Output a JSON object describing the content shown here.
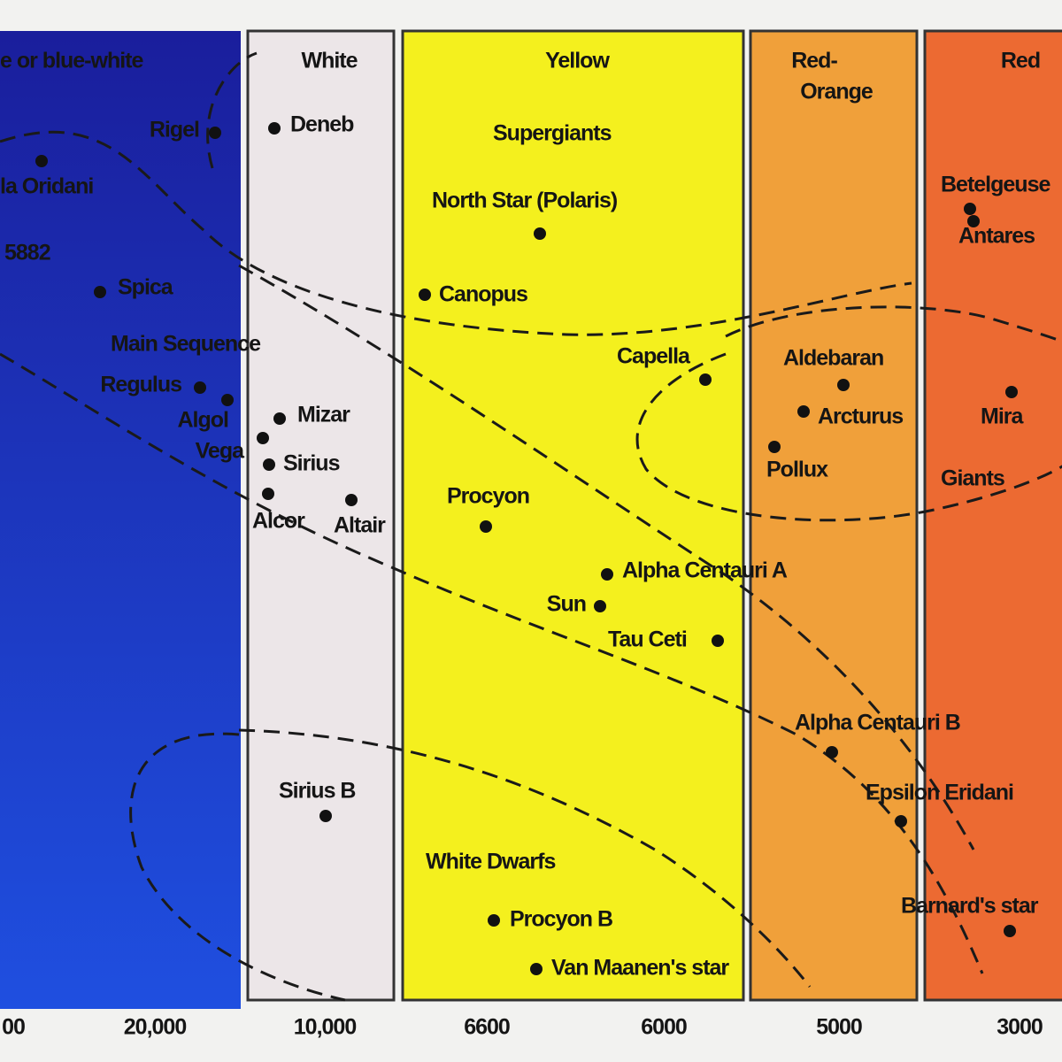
{
  "bands": [
    {
      "lines": [
        "e or blue-white"
      ]
    },
    {
      "lines": [
        "White"
      ]
    },
    {
      "lines": [
        "Yellow"
      ]
    },
    {
      "lines": [
        "Red-",
        "Orange"
      ]
    },
    {
      "lines": [
        "Red"
      ]
    }
  ],
  "regions": [
    "Supergiants",
    "Main Sequence",
    "Giants",
    "White Dwarfs"
  ],
  "stars": [
    {
      "name": "Rigel"
    },
    {
      "name": "Deneb"
    },
    {
      "name": "la Oridani"
    },
    {
      "name": "5882"
    },
    {
      "name": "Spica"
    },
    {
      "name": "Regulus"
    },
    {
      "name": "Algol"
    },
    {
      "name": "Vega"
    },
    {
      "name": "Alcor"
    },
    {
      "name": "Mizar"
    },
    {
      "name": "Sirius"
    },
    {
      "name": "Altair"
    },
    {
      "name": "North Star (Polaris)"
    },
    {
      "name": "Canopus"
    },
    {
      "name": "Capella"
    },
    {
      "name": "Aldebaran"
    },
    {
      "name": "Arcturus"
    },
    {
      "name": "Pollux"
    },
    {
      "name": "Betelgeuse"
    },
    {
      "name": "Antares"
    },
    {
      "name": "Mira"
    },
    {
      "name": "Procyon"
    },
    {
      "name": "Alpha Centauri A"
    },
    {
      "name": "Sun"
    },
    {
      "name": "Tau Ceti"
    },
    {
      "name": "Alpha Centauri B"
    },
    {
      "name": "Epsilon Eridani"
    },
    {
      "name": "Barnard's star"
    },
    {
      "name": "Sirius B"
    },
    {
      "name": "Procyon B"
    },
    {
      "name": "Van Maanen's star"
    }
  ],
  "axis_labels": [
    "00",
    "20,000",
    "10,000",
    "6600",
    "6000",
    "5000",
    "3000"
  ]
}
